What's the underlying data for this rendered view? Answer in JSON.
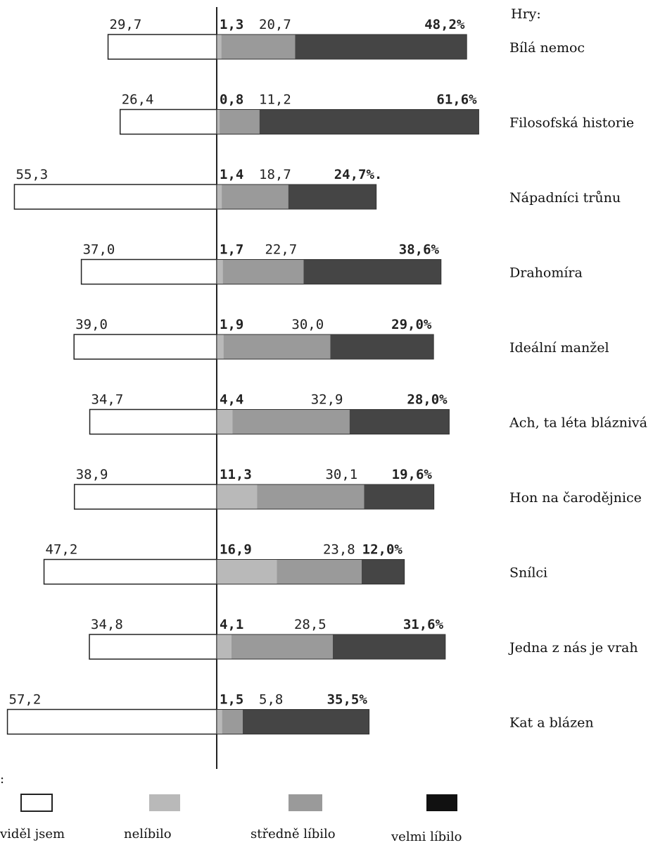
{
  "chart_data": {
    "type": "bar",
    "header": "Hry:",
    "legend_title": ":",
    "categories": [
      "Bílá nemoc",
      "Filosofská historie",
      "Nápadníci trůnu",
      "Drahomíra",
      "Ideální manžel",
      "Ach, ta léta bláznivá",
      "Hon na čarodějnice",
      "Snílci",
      "Jedna z nás je vrah",
      "Kat a blázen"
    ],
    "series": [
      {
        "name": "viděl jsem",
        "values": [
          29.7,
          26.4,
          55.3,
          37.0,
          39.0,
          34.7,
          38.9,
          47.2,
          34.8,
          57.2
        ]
      },
      {
        "name": "nelíbilo",
        "values": [
          1.3,
          0.8,
          1.4,
          1.7,
          1.9,
          4.4,
          11.3,
          16.9,
          4.1,
          1.5
        ]
      },
      {
        "name": "středně líbilo",
        "values": [
          20.7,
          11.2,
          18.7,
          22.7,
          30.0,
          32.9,
          30.1,
          23.8,
          28.5,
          5.8
        ]
      },
      {
        "name": "velmi líbilo",
        "values": [
          48.2,
          61.6,
          24.7,
          38.6,
          29.0,
          28.0,
          19.6,
          12.0,
          31.6,
          35.5
        ]
      }
    ],
    "labels": {
      "seen": [
        "29,7",
        "26,4",
        "55,3",
        "37,0",
        "39,0",
        "34,7",
        "38,9",
        "47,2",
        "34,8",
        "57,2"
      ],
      "disliked": [
        "1,3",
        "0,8",
        "1,4",
        "1,7",
        "1,9",
        "4,4",
        "11,3",
        "16,9",
        "4,1",
        "1,5"
      ],
      "medium": [
        "20,7",
        "11,2",
        "18,7",
        "22,7",
        "30,0",
        "32,9",
        "30,1",
        "23,8",
        "28,5",
        "5,8"
      ],
      "liked": [
        "48,2%",
        "61,6%",
        "24,7%.",
        "38,6%",
        "29,0%",
        "28,0%",
        "19,6%",
        "12,0%",
        "31,6%",
        "35,5%"
      ]
    },
    "colors": {
      "seen": "#ffffff",
      "disliked": "#b9b9b9",
      "medium": "#9a9a9a",
      "liked": "#454545",
      "legend_liked": "#111111",
      "stroke": "#222222"
    }
  }
}
